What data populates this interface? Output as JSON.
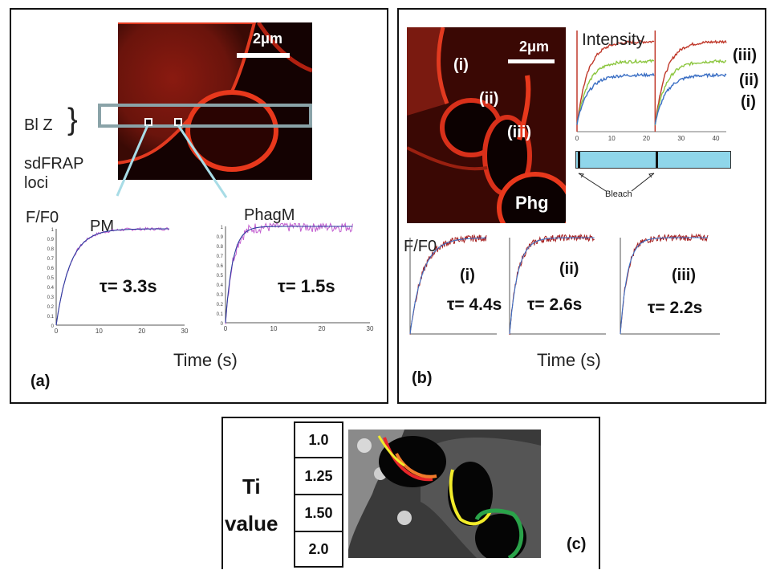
{
  "panel_a": {
    "scale_bar": "2μm",
    "bleach_zone_label": "Bl Z",
    "bleach_zone_brace": "}",
    "loci_label_line1": "sdFRAP",
    "loci_label_line2": "loci",
    "ylabel": "F/F0",
    "plot_pm_title": "PM",
    "plot_phagm_title": "PhagM",
    "tau_pm": "τ= 3.3s",
    "tau_phagm": "τ= 1.5s",
    "xlabel": "Time (s)",
    "panel_label": "(a)"
  },
  "panel_b": {
    "scale_bar": "2μm",
    "region_i": "(i)",
    "region_ii": "(ii)",
    "region_iii": "(iii)",
    "phg_label": "Phg",
    "intensity_title": "Intensity",
    "legend_iii": "(iii)",
    "legend_ii": "(ii)",
    "legend_i": "(i)",
    "bleach_label": "Bleach",
    "ylabel": "F/F0",
    "plot_i_label": "(i)",
    "plot_ii_label": "(ii)",
    "plot_iii_label": "(iii)",
    "tau_i": "τ= 4.4s",
    "tau_ii": "τ= 2.6s",
    "tau_iii": "τ= 2.2s",
    "xlabel": "Time (s)",
    "panel_label": "(b)"
  },
  "panel_c": {
    "ti_label_line1": "Ti",
    "ti_label_line2": "value",
    "scale": [
      {
        "value": "1.0",
        "color": "#2aa34a"
      },
      {
        "value": "1.25",
        "color": "#f2ec2a"
      },
      {
        "value": "1.50",
        "color": "#f07a2a"
      },
      {
        "value": "2.0",
        "color": "#e8262a"
      }
    ],
    "panel_label": "(c)"
  },
  "chart_data": [
    {
      "type": "line",
      "panel": "a-PM",
      "title": "PM",
      "x": [
        0,
        5,
        10,
        15,
        20,
        25
      ],
      "series": [],
      "xlim": [
        0,
        30
      ],
      "ylim": [
        0,
        1
      ],
      "x_ticks": [
        "0",
        "10",
        "20",
        "30"
      ],
      "y_ticks": [
        "0",
        "0.1",
        "0.2",
        "0.3",
        "0.4",
        "0.5",
        "0.6",
        "0.7",
        "0.8",
        "0.9",
        "1"
      ],
      "tau": 3.3
    },
    {
      "type": "line",
      "panel": "a-PhagM",
      "title": "PhagM",
      "xlim": [
        0,
        30
      ],
      "ylim": [
        0,
        1
      ],
      "x_ticks": [
        "0",
        "10",
        "20",
        "30"
      ],
      "y_ticks": [
        "0",
        "0.1",
        "0.2",
        "0.3",
        "0.4",
        "0.5",
        "0.6",
        "0.7",
        "0.8",
        "0.9",
        "1"
      ],
      "tau": 1.5
    },
    {
      "type": "line",
      "panel": "b-intensity",
      "title": "Intensity",
      "xlim": [
        0,
        43
      ],
      "x_ticks": [
        "0",
        "10",
        "20",
        "30",
        "40"
      ],
      "bleach_times": [
        0,
        22.5
      ],
      "series": [
        {
          "name": "(iii)",
          "color": "#c0392b",
          "plateau": 0.92
        },
        {
          "name": "(ii)",
          "color": "#8cc63f",
          "plateau": 0.72
        },
        {
          "name": "(i)",
          "color": "#3b6fc4",
          "plateau": 0.58
        }
      ]
    },
    {
      "type": "line",
      "panel": "b-i",
      "tau": 4.4
    },
    {
      "type": "line",
      "panel": "b-ii",
      "tau": 2.6
    },
    {
      "type": "line",
      "panel": "b-iii",
      "tau": 2.2
    }
  ]
}
